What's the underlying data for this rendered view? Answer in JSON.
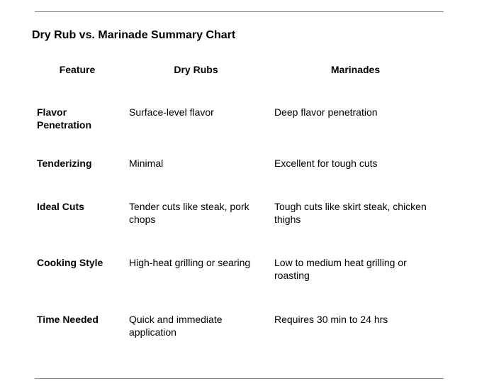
{
  "title": "Dry Rub vs. Marinade Summary Chart",
  "table": {
    "headers": [
      "Feature",
      "Dry Rubs",
      "Marinades"
    ],
    "rows": [
      [
        "Flavor Penetration",
        "Surface-level flavor",
        "Deep flavor penetration"
      ],
      [
        "Tenderizing",
        "Minimal",
        "Excellent for tough cuts"
      ],
      [
        "Ideal Cuts",
        "Tender cuts like steak, pork chops",
        "Tough cuts like skirt steak, chicken thighs"
      ],
      [
        "Cooking Style",
        "High-heat grilling or searing",
        "Low to medium heat grilling or roasting"
      ],
      [
        "Time Needed",
        "Quick and immediate application",
        "Requires 30 min to 24 hrs"
      ]
    ]
  },
  "colors": {
    "text": "#000000",
    "rule": "#8a8a8a",
    "background": "#ffffff"
  }
}
